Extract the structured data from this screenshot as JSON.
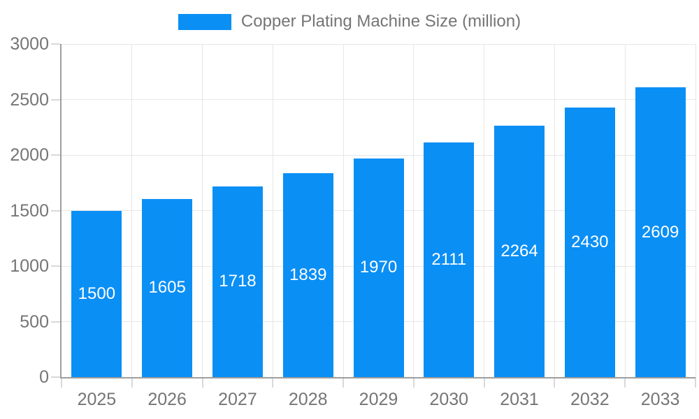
{
  "legend": {
    "label": "Copper Plating Machine Size (million)",
    "swatch_color": "#0a8ff5"
  },
  "chart_data": {
    "type": "bar",
    "title": "Copper Plating Machine Size (million)",
    "categories": [
      "2025",
      "2026",
      "2027",
      "2028",
      "2029",
      "2030",
      "2031",
      "2032",
      "2033"
    ],
    "values": [
      1500,
      1605,
      1718,
      1839,
      1970,
      2111,
      2264,
      2430,
      2609
    ],
    "xlabel": "",
    "ylabel": "",
    "ylim": [
      0,
      3000
    ],
    "yticks": [
      0,
      500,
      1000,
      1500,
      2000,
      2500,
      3000
    ],
    "grid": "both",
    "legend_position": "top-center",
    "bar_color": "#0a8ff5",
    "value_label_position": "inside-center",
    "value_label_color": "#ffffff",
    "axis_color": "#9e9e9e",
    "grid_color": "#e6e6e6",
    "tick_color": "#d9d9d9",
    "label_color": "#757575"
  }
}
